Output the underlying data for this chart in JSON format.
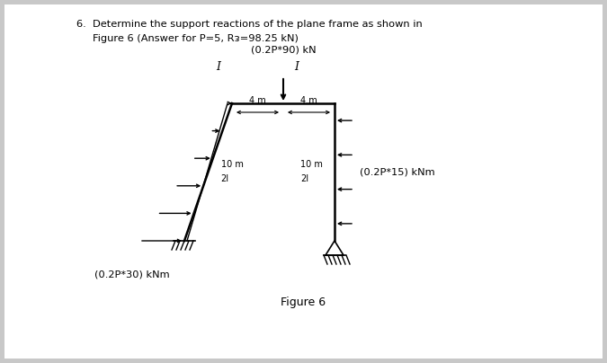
{
  "title_line1": "6.  Determine the support reactions of the plane frame as shown in",
  "title_line2": "Figure 6 (Answer for P=5, Rᴈ=98.25 kN)",
  "load_top_label": "(0.2P*90) kN",
  "load_right_label": "(0.2P*15) kNm",
  "load_bottom_label": "(0.2P*30) kNm",
  "figure_label": "Figure 6",
  "dim_horiz_left": "4 m",
  "dim_horiz_right": "4 m",
  "dim_vert_left": "10 m",
  "dim_vert_left2": "2I",
  "dim_vert_right": "10 m",
  "dim_vert_right2": "2I",
  "bg_color": "#c8c8c8",
  "panel_color": "#f0f0f0"
}
